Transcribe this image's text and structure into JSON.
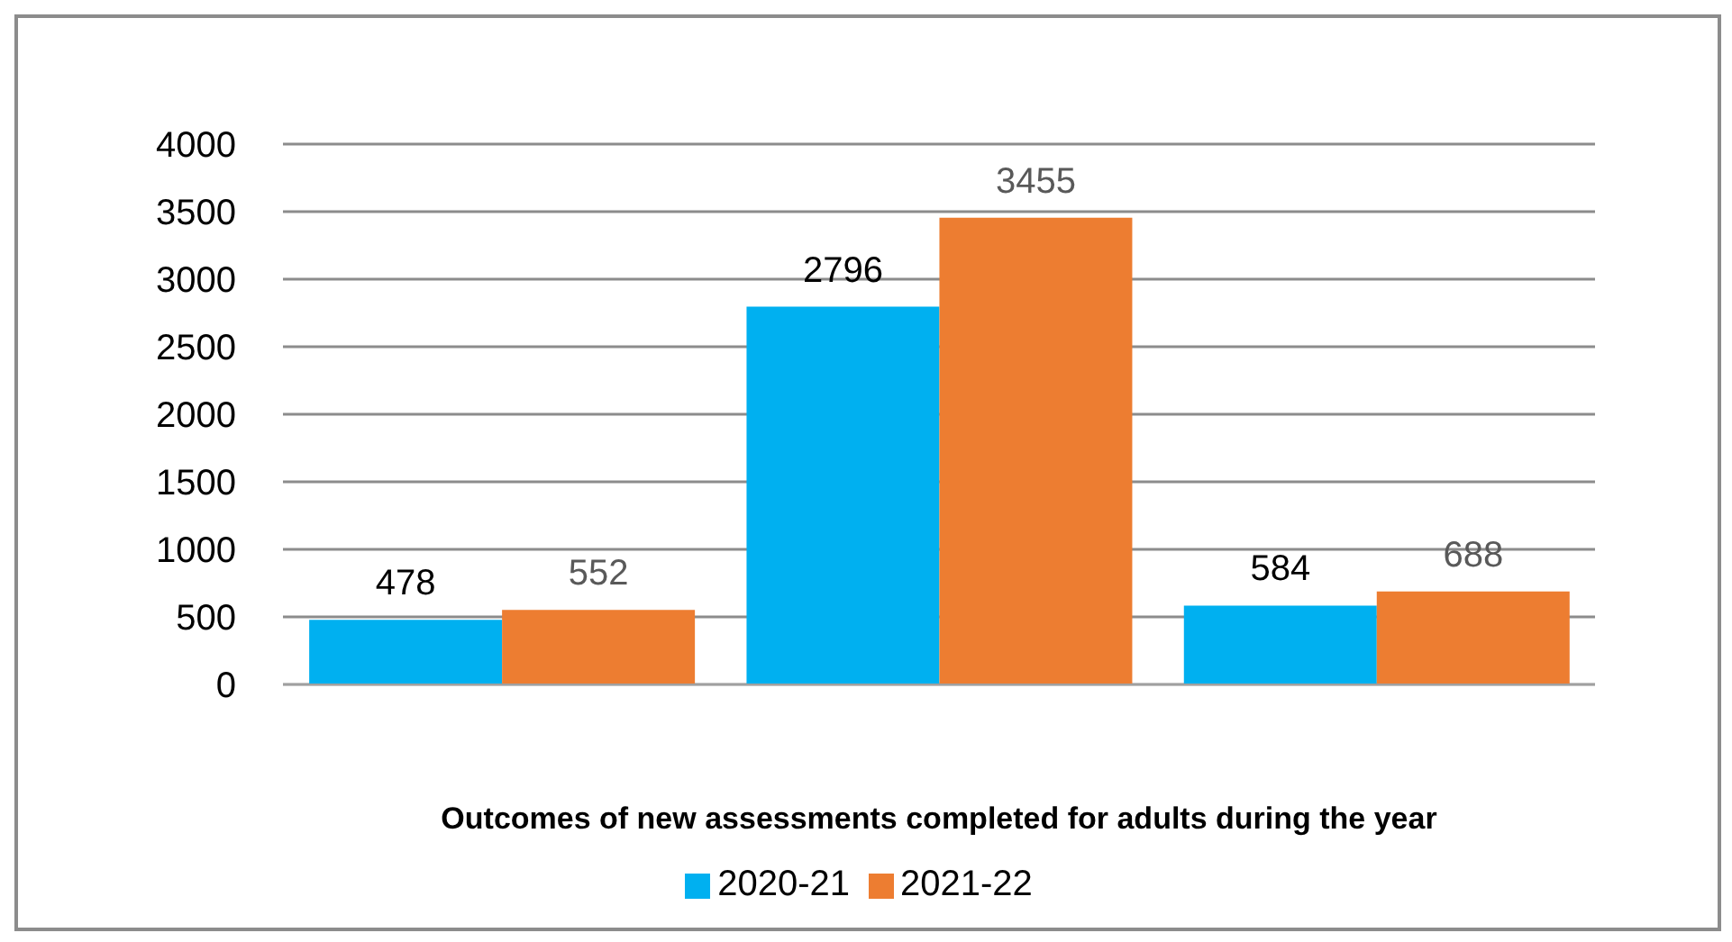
{
  "chart_data": {
    "type": "bar",
    "xlabel": "Outcomes of new assessments completed for adults during the year",
    "categories": [
      null,
      null,
      null
    ],
    "series": [
      {
        "name": "2020-21",
        "color": "#00b0f0",
        "values": [
          478,
          2796,
          584
        ]
      },
      {
        "name": "2021-22",
        "color": "#ed7d31",
        "values": [
          552,
          3455,
          688
        ]
      }
    ],
    "ylim": [
      0,
      4000
    ],
    "yticks": [
      0,
      500,
      1000,
      1500,
      2000,
      2500,
      3000,
      3500,
      4000
    ],
    "grid": "y",
    "legend": "bottom",
    "data_labels": true
  }
}
